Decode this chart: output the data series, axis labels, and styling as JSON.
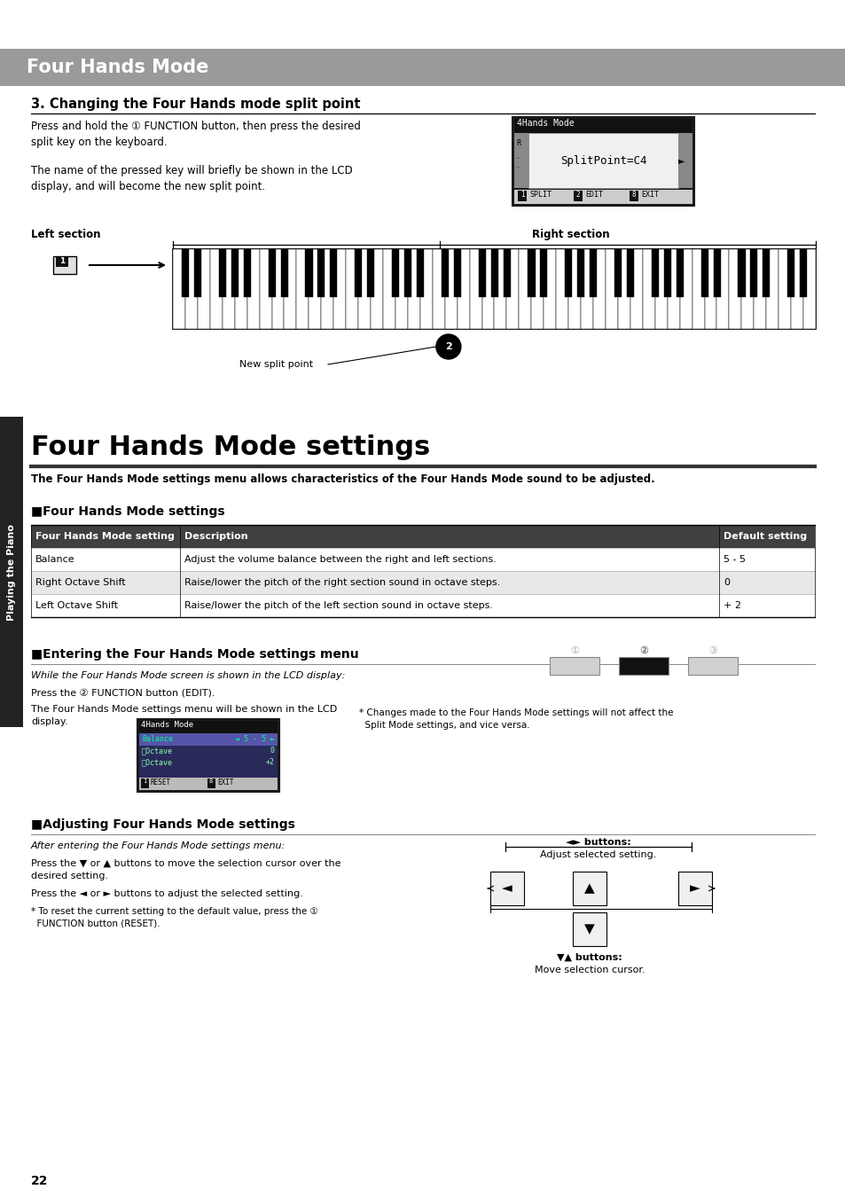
{
  "page_bg": "#ffffff",
  "header_bg": "#9a9a9a",
  "header_text": "Four Hands Mode",
  "header_text_color": "#ffffff",
  "section1_title": "3. Changing the Four Hands mode split point",
  "section1_body1": "Press and hold the ① FUNCTION button, then press the desired\nsplit key on the keyboard.",
  "section1_body2": "The name of the pressed key will briefly be shown in the LCD\ndisplay, and will become the new split point.",
  "section2_title": "Four Hands Mode settings",
  "section2_subtitle": "The Four Hands Mode settings menu allows characteristics of the Four Hands Mode sound to be adjusted.",
  "subsection2a_title": "■Four Hands Mode settings",
  "table_header_bg": "#404040",
  "table_header_text_color": "#ffffff",
  "table_col1_header": "Four Hands Mode setting",
  "table_col2_header": "Description",
  "table_col3_header": "Default setting",
  "table_rows": [
    [
      "Balance",
      "Adjust the volume balance between the right and left sections.",
      "5 - 5"
    ],
    [
      "Right Octave Shift",
      "Raise/lower the pitch of the right section sound in octave steps.",
      "0"
    ],
    [
      "Left Octave Shift",
      "Raise/lower the pitch of the left section sound in octave steps.",
      "+ 2"
    ]
  ],
  "subsection2b_title": "■Entering the Four Hands Mode settings menu",
  "subsection2b_italic": "While the Four Hands Mode screen is shown in the LCD display:",
  "subsection2b_body1": "Press the ② FUNCTION button (EDIT).",
  "subsection2b_body2": "The Four Hands Mode settings menu will be shown in the LCD\ndisplay.",
  "subsection2b_note": "* Changes made to the Four Hands Mode settings will not affect the\n  Split Mode settings, and vice versa.",
  "subsection2c_title": "■Adjusting Four Hands Mode settings",
  "subsection2c_italic": "After entering the Four Hands Mode settings menu:",
  "subsection2c_body1": "Press the ▼ or ▲ buttons to move the selection cursor over the\ndesired setting.",
  "subsection2c_body2": "Press the ◄ or ► buttons to adjust the selected setting.",
  "subsection2c_note": "* To reset the current setting to the default value, press the ①\n  FUNCTION button (RESET).",
  "left_tab_text": "Playing the Piano",
  "page_number": "22",
  "left_section_label": "Left section",
  "right_section_label": "Right section",
  "new_split_point_label": "New split point",
  "lr_buttons_label": "◄► buttons:",
  "lr_buttons_desc": "Adjust selected setting.",
  "ud_buttons_label": "▼▲ buttons:",
  "ud_buttons_desc": "Move selection cursor."
}
